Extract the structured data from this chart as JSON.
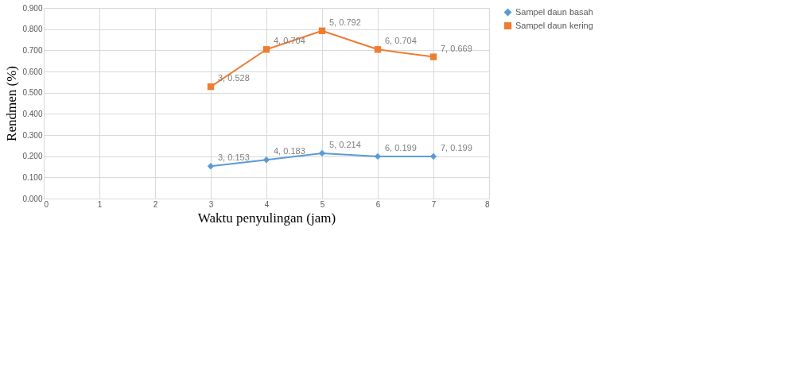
{
  "chart_data": {
    "type": "line",
    "xlabel": "Waktu penyulingan (jam)",
    "ylabel": "Rendmen (%)",
    "x": [
      3,
      4,
      5,
      6,
      7
    ],
    "series": [
      {
        "name": "Sampel daun basah",
        "color": "#5b9bd5",
        "marker": "diamond",
        "values": [
          0.153,
          0.183,
          0.214,
          0.199,
          0.199
        ],
        "value_labels": [
          "3, 0.153",
          "4, 0.183",
          "5, 0.214",
          "6, 0.199",
          "7, 0.199"
        ]
      },
      {
        "name": "Sampel daun kering",
        "color": "#ed7d31",
        "marker": "square",
        "values": [
          0.528,
          0.704,
          0.792,
          0.704,
          0.669
        ],
        "value_labels": [
          "3, 0.528",
          "4, 0.704",
          "5, 0.792",
          "6, 0.704",
          "7, 0.669"
        ]
      }
    ],
    "xlim": [
      0,
      8
    ],
    "xticks": [
      0,
      1,
      2,
      3,
      4,
      5,
      6,
      7,
      8
    ],
    "ylim": [
      0,
      0.9
    ],
    "yticks": [
      {
        "value": 0,
        "label": "0.000"
      },
      {
        "value": 0.1,
        "label": "0.100"
      },
      {
        "value": 0.2,
        "label": "0.200"
      },
      {
        "value": 0.3,
        "label": "0.300"
      },
      {
        "value": 0.4,
        "label": "0.400"
      },
      {
        "value": 0.5,
        "label": "0.500"
      },
      {
        "value": 0.6,
        "label": "0.600"
      },
      {
        "value": 0.7,
        "label": "0.700"
      },
      {
        "value": 0.8,
        "label": "0.800"
      },
      {
        "value": 0.9,
        "label": "0.900"
      }
    ],
    "grid": true,
    "legend": "right",
    "line_style": "solid"
  }
}
